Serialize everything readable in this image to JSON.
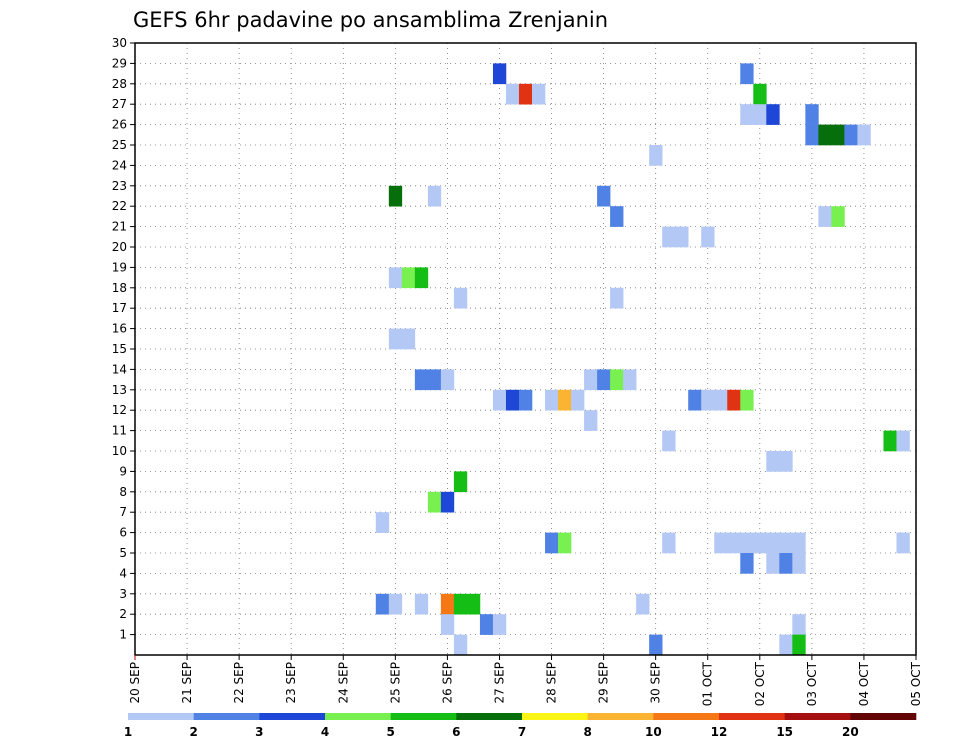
{
  "chart_data": {
    "type": "heatmap",
    "title": "GEFS 6hr padavine po ansamblima Zrenjanin",
    "xlabel": "",
    "ylabel": "",
    "x_tick_labels": [
      "20 SEP",
      "21 SEP",
      "22 SEP",
      "23 SEP",
      "24 SEP",
      "25 SEP",
      "26 SEP",
      "27 SEP",
      "28 SEP",
      "29 SEP",
      "30 SEP",
      "01 OCT",
      "02 OCT",
      "03 OCT",
      "04 OCT",
      "05 OCT"
    ],
    "y_tick_labels": [
      "1",
      "2",
      "3",
      "4",
      "5",
      "6",
      "7",
      "8",
      "9",
      "10",
      "11",
      "12",
      "13",
      "14",
      "15",
      "16",
      "17",
      "18",
      "19",
      "20",
      "21",
      "22",
      "23",
      "24",
      "25",
      "26",
      "27",
      "28",
      "29",
      "30"
    ],
    "x_range_steps": [
      0,
      60
    ],
    "steps_per_day": 4,
    "ylim": [
      0,
      30
    ],
    "grid": true,
    "legend": {
      "position": "bottom",
      "labels": [
        "1",
        "2",
        "3",
        "4",
        "5",
        "6",
        "7",
        "8",
        "10",
        "12",
        "15",
        "20"
      ],
      "colors": [
        "#b4c8f5",
        "#5082e6",
        "#1e46d7",
        "#78f050",
        "#14be14",
        "#066e0a",
        "#faf514",
        "#fab432",
        "#f57814",
        "#e13214",
        "#a50f0f",
        "#640505"
      ]
    },
    "cells": [
      {
        "member": 29,
        "step": 28,
        "level": 3
      },
      {
        "member": 29,
        "step": 47,
        "level": 2
      },
      {
        "member": 28,
        "step": 29,
        "level": 1
      },
      {
        "member": 28,
        "step": 30,
        "level": 10
      },
      {
        "member": 28,
        "step": 31,
        "level": 1
      },
      {
        "member": 28,
        "step": 48,
        "level": 5
      },
      {
        "member": 27,
        "step": 47,
        "level": 1
      },
      {
        "member": 27,
        "step": 48,
        "level": 1
      },
      {
        "member": 27,
        "step": 49,
        "level": 3
      },
      {
        "member": 27,
        "step": 52,
        "level": 2
      },
      {
        "member": 26,
        "step": 52,
        "level": 2
      },
      {
        "member": 26,
        "step": 53,
        "level": 6
      },
      {
        "member": 26,
        "step": 54,
        "level": 6
      },
      {
        "member": 26,
        "step": 55,
        "level": 2
      },
      {
        "member": 26,
        "step": 56,
        "level": 1
      },
      {
        "member": 25,
        "step": 40,
        "level": 1
      },
      {
        "member": 23,
        "step": 20,
        "level": 6
      },
      {
        "member": 23,
        "step": 23,
        "level": 1
      },
      {
        "member": 23,
        "step": 36,
        "level": 2
      },
      {
        "member": 22,
        "step": 37,
        "level": 2
      },
      {
        "member": 22,
        "step": 53,
        "level": 1
      },
      {
        "member": 22,
        "step": 54,
        "level": 4
      },
      {
        "member": 21,
        "step": 41,
        "level": 1
      },
      {
        "member": 21,
        "step": 42,
        "level": 1
      },
      {
        "member": 21,
        "step": 44,
        "level": 1
      },
      {
        "member": 19,
        "step": 20,
        "level": 1
      },
      {
        "member": 19,
        "step": 21,
        "level": 4
      },
      {
        "member": 19,
        "step": 22,
        "level": 5
      },
      {
        "member": 18,
        "step": 25,
        "level": 1
      },
      {
        "member": 18,
        "step": 37,
        "level": 1
      },
      {
        "member": 16,
        "step": 20,
        "level": 1
      },
      {
        "member": 16,
        "step": 21,
        "level": 1
      },
      {
        "member": 14,
        "step": 22,
        "level": 2
      },
      {
        "member": 14,
        "step": 23,
        "level": 2
      },
      {
        "member": 14,
        "step": 24,
        "level": 1
      },
      {
        "member": 14,
        "step": 35,
        "level": 1
      },
      {
        "member": 14,
        "step": 36,
        "level": 2
      },
      {
        "member": 14,
        "step": 37,
        "level": 4
      },
      {
        "member": 14,
        "step": 38,
        "level": 1
      },
      {
        "member": 13,
        "step": 28,
        "level": 1
      },
      {
        "member": 13,
        "step": 29,
        "level": 3
      },
      {
        "member": 13,
        "step": 30,
        "level": 2
      },
      {
        "member": 13,
        "step": 32,
        "level": 1
      },
      {
        "member": 13,
        "step": 33,
        "level": 8
      },
      {
        "member": 13,
        "step": 34,
        "level": 1
      },
      {
        "member": 13,
        "step": 43,
        "level": 2
      },
      {
        "member": 13,
        "step": 44,
        "level": 1
      },
      {
        "member": 13,
        "step": 45,
        "level": 1
      },
      {
        "member": 13,
        "step": 46,
        "level": 10
      },
      {
        "member": 13,
        "step": 47,
        "level": 4
      },
      {
        "member": 12,
        "step": 35,
        "level": 1
      },
      {
        "member": 11,
        "step": 41,
        "level": 1
      },
      {
        "member": 11,
        "step": 58,
        "level": 5
      },
      {
        "member": 11,
        "step": 59,
        "level": 1
      },
      {
        "member": 10,
        "step": 49,
        "level": 1
      },
      {
        "member": 10,
        "step": 50,
        "level": 1
      },
      {
        "member": 9,
        "step": 25,
        "level": 5
      },
      {
        "member": 8,
        "step": 23,
        "level": 4
      },
      {
        "member": 8,
        "step": 24,
        "level": 3
      },
      {
        "member": 7,
        "step": 19,
        "level": 1
      },
      {
        "member": 6,
        "step": 32,
        "level": 2
      },
      {
        "member": 6,
        "step": 33,
        "level": 4
      },
      {
        "member": 6,
        "step": 41,
        "level": 1
      },
      {
        "member": 6,
        "step": 45,
        "level": 1
      },
      {
        "member": 6,
        "step": 46,
        "level": 1
      },
      {
        "member": 6,
        "step": 47,
        "level": 1
      },
      {
        "member": 6,
        "step": 48,
        "level": 1
      },
      {
        "member": 6,
        "step": 49,
        "level": 1
      },
      {
        "member": 6,
        "step": 50,
        "level": 1
      },
      {
        "member": 6,
        "step": 51,
        "level": 1
      },
      {
        "member": 6,
        "step": 59,
        "level": 1
      },
      {
        "member": 5,
        "step": 47,
        "level": 2
      },
      {
        "member": 5,
        "step": 49,
        "level": 1
      },
      {
        "member": 5,
        "step": 50,
        "level": 2
      },
      {
        "member": 5,
        "step": 51,
        "level": 1
      },
      {
        "member": 3,
        "step": 19,
        "level": 2
      },
      {
        "member": 3,
        "step": 20,
        "level": 1
      },
      {
        "member": 3,
        "step": 22,
        "level": 1
      },
      {
        "member": 3,
        "step": 24,
        "level": 9
      },
      {
        "member": 3,
        "step": 25,
        "level": 5
      },
      {
        "member": 3,
        "step": 26,
        "level": 5
      },
      {
        "member": 3,
        "step": 39,
        "level": 1
      },
      {
        "member": 2,
        "step": 24,
        "level": 1
      },
      {
        "member": 2,
        "step": 27,
        "level": 2
      },
      {
        "member": 2,
        "step": 28,
        "level": 1
      },
      {
        "member": 2,
        "step": 51,
        "level": 1
      },
      {
        "member": 1,
        "step": 25,
        "level": 1
      },
      {
        "member": 1,
        "step": 40,
        "level": 2
      },
      {
        "member": 1,
        "step": 50,
        "level": 1
      },
      {
        "member": 1,
        "step": 51,
        "level": 5
      }
    ]
  }
}
